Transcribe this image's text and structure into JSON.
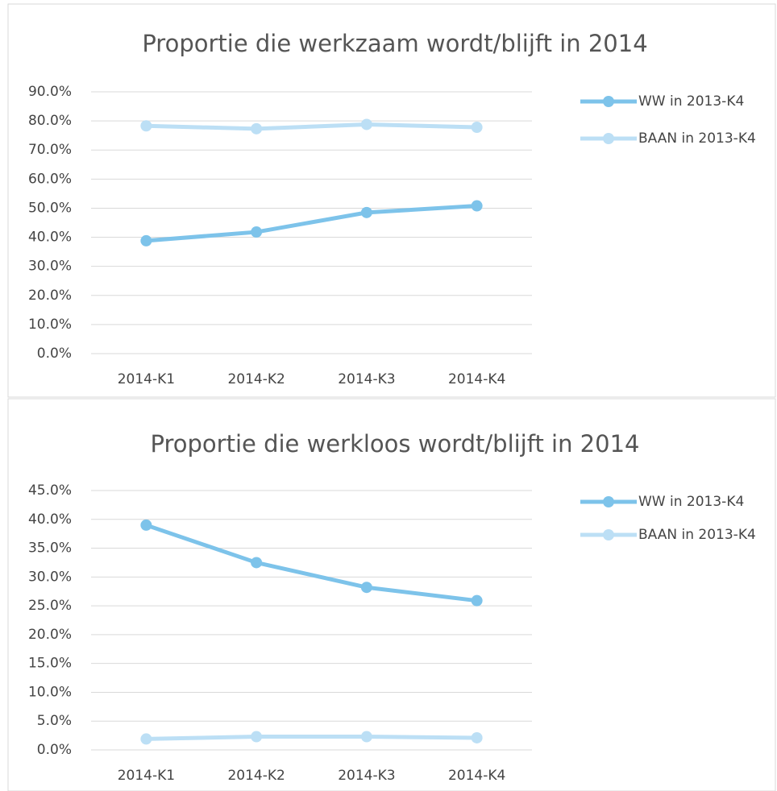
{
  "chart_data": [
    {
      "type": "line",
      "title": "Proportie die werkzaam wordt/blijft in 2014",
      "categories": [
        "2014-K1",
        "2014-K2",
        "2014-K3",
        "2014-K4"
      ],
      "series": [
        {
          "name": "WW in 2013-K4",
          "color": "#7dc3ea",
          "values": [
            38.8,
            41.8,
            48.5,
            50.8
          ]
        },
        {
          "name": "BAAN in 2013-K4",
          "color": "#bcdff5",
          "values": [
            78.3,
            77.3,
            78.8,
            77.8
          ]
        }
      ],
      "ylim": [
        0,
        90
      ],
      "yticks": [
        {
          "value": 0,
          "label": "0.0%"
        },
        {
          "value": 10,
          "label": "10.0%"
        },
        {
          "value": 20,
          "label": "20.0%"
        },
        {
          "value": 30,
          "label": "30.0%"
        },
        {
          "value": 40,
          "label": "40.0%"
        },
        {
          "value": 50,
          "label": "50.0%"
        },
        {
          "value": 60,
          "label": "60.0%"
        },
        {
          "value": 70,
          "label": "70.0%"
        },
        {
          "value": 80,
          "label": "80.0%"
        },
        {
          "value": 90,
          "label": "90.0%"
        }
      ],
      "grid": true,
      "legend": "right"
    },
    {
      "type": "line",
      "title": "Proportie die werkloos wordt/blijft in 2014",
      "categories": [
        "2014-K1",
        "2014-K2",
        "2014-K3",
        "2014-K4"
      ],
      "series": [
        {
          "name": "WW in 2013-K4",
          "color": "#7dc3ea",
          "values": [
            39.0,
            32.5,
            28.2,
            25.9
          ]
        },
        {
          "name": "BAAN in 2013-K4",
          "color": "#bcdff5",
          "values": [
            1.9,
            2.3,
            2.3,
            2.1
          ]
        }
      ],
      "ylim": [
        0,
        45
      ],
      "yticks": [
        {
          "value": 0,
          "label": "0.0%"
        },
        {
          "value": 5,
          "label": "5.0%"
        },
        {
          "value": 10,
          "label": "10.0%"
        },
        {
          "value": 15,
          "label": "15.0%"
        },
        {
          "value": 20,
          "label": "20.0%"
        },
        {
          "value": 25,
          "label": "25.0%"
        },
        {
          "value": 30,
          "label": "30.0%"
        },
        {
          "value": 35,
          "label": "35.0%"
        },
        {
          "value": 40,
          "label": "40.0%"
        },
        {
          "value": 45,
          "label": "45.0%"
        }
      ],
      "grid": true,
      "legend": "right"
    }
  ]
}
